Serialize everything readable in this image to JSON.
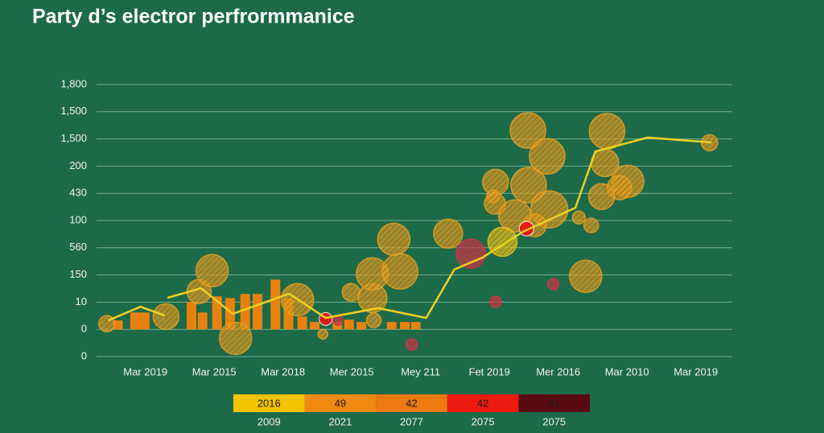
{
  "chart_data": {
    "type": "combo",
    "title": "Party d’s electror perfrormmanice",
    "categories": [
      "Mar 2019",
      "Mar 2015",
      "Mar 2018",
      "Mer 2015",
      "Mey 211",
      "Fet 2019",
      "Mer 2016",
      "Mar 2010",
      "Mar 2019"
    ],
    "xlim": [
      -0.71,
      8.53
    ],
    "ylim": [
      -1,
      9
    ],
    "yticks": [
      {
        "value": -1,
        "label": "0"
      },
      0,
      {
        "value": 1,
        "label": "10"
      },
      {
        "value": 2,
        "label": "150"
      },
      {
        "value": 3,
        "label": "560"
      },
      {
        "value": 4,
        "label": "100"
      },
      {
        "value": 5,
        "label": "430"
      },
      {
        "value": 6,
        "label": "200"
      },
      {
        "value": 7,
        "label": "1,500"
      },
      {
        "value": 8,
        "label": "1,500"
      },
      {
        "value": 9,
        "label": "1,800"
      }
    ],
    "grid": true,
    "series": [
      {
        "type": "bar",
        "color": "#e8820e",
        "x": [
          -0.4,
          -0.15,
          -0.01,
          0.67,
          0.83,
          1.04,
          1.23,
          1.45,
          1.63,
          1.89,
          2.08,
          2.28,
          2.46,
          2.79,
          2.96,
          3.14,
          3.58,
          3.77,
          3.93
        ],
        "values": [
          0.33,
          0.62,
          0.62,
          1.01,
          0.62,
          1.21,
          1.15,
          1.3,
          1.3,
          1.83,
          1.15,
          0.47,
          0.27,
          0.27,
          0.36,
          0.27,
          0.27,
          0.27,
          0.27
        ]
      },
      {
        "type": "scatter",
        "color": "#e8a020",
        "x": [
          -0.56,
          0.3,
          0.78,
          0.97,
          1.31,
          2.21,
          2.58,
          2.99,
          3.3,
          3.3,
          3.61,
          3.7,
          3.32,
          4.4,
          5.09,
          5.05,
          5.08,
          5.37,
          5.57,
          5.56,
          5.84,
          5.87,
          5.66,
          6.3,
          6.48,
          6.4,
          6.71,
          6.68,
          7.01,
          6.89,
          6.63,
          8.2
        ],
        "values": [
          0.21,
          0.47,
          1.39,
          2.16,
          -0.33,
          1.09,
          -0.18,
          1.36,
          1.15,
          2.04,
          3.31,
          2.13,
          0.33,
          3.52,
          5.41,
          4.88,
          4.62,
          4.17,
          5.3,
          7.31,
          6.36,
          4.41,
          3.82,
          4.11,
          3.82,
          1.95,
          7.28,
          6.12,
          5.44,
          5.21,
          4.88,
          6.86
        ],
        "sizes": [
          10,
          16,
          15,
          20,
          20,
          20,
          6,
          11,
          18,
          20,
          20,
          22,
          9,
          18,
          16,
          8,
          13,
          20,
          22,
          22,
          22,
          23,
          14,
          8,
          9,
          20,
          22,
          17,
          20,
          15,
          16,
          10
        ]
      },
      {
        "type": "scatter",
        "color": "#d8304a",
        "x": [
          4.73,
          2.8,
          3.87,
          5.09,
          5.93
        ],
        "values": [
          2.78,
          0.33,
          -0.56,
          1.01,
          1.66
        ],
        "sizes": [
          18,
          6,
          7,
          7,
          7
        ]
      },
      {
        "type": "scatter",
        "color": "#f0c818",
        "x": [
          5.19
        ],
        "values": [
          3.22
        ],
        "sizes": [
          18
        ]
      },
      {
        "type": "scatter",
        "color": "#ee1111",
        "solid": true,
        "x": [
          2.62,
          5.54
        ],
        "values": [
          0.38,
          3.7
        ],
        "sizes": [
          8,
          9
        ]
      },
      {
        "type": "line",
        "color": "#f0d020",
        "x": [
          -0.54,
          -0.07,
          0.28,
          null,
          0.32,
          0.81,
          1.27,
          2.09,
          2.62,
          3.38,
          4.08,
          4.49,
          4.9,
          5.49,
          6.25,
          6.54,
          7.3,
          8.23
        ],
        "values": [
          0.33,
          0.83,
          0.51,
          null,
          1.16,
          1.51,
          0.57,
          1.31,
          0.42,
          0.78,
          0.42,
          2.2,
          2.64,
          3.59,
          4.47,
          6.54,
          7.05,
          6.87
        ]
      }
    ],
    "legend_strip": [
      {
        "label": "2016",
        "sublabel": "2009",
        "color": "#f5c400"
      },
      {
        "label": "49",
        "sublabel": "2021",
        "color": "#f08a10"
      },
      {
        "label": "42",
        "sublabel": "2077",
        "color": "#ee7a10"
      },
      {
        "label": "42",
        "sublabel": "2075",
        "color": "#ee1a10"
      },
      {
        "label": "A1",
        "sublabel": "2075",
        "color": "#5a0a10"
      }
    ]
  }
}
